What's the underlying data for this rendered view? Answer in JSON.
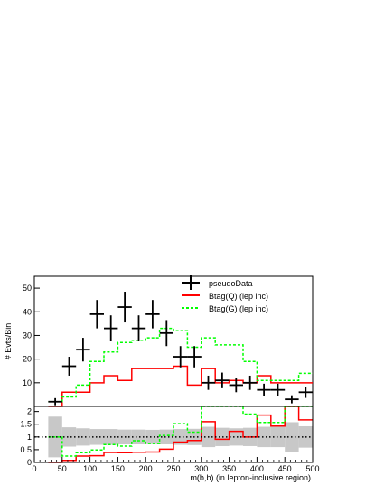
{
  "chart_data": [
    {
      "type": "line",
      "panel": "main",
      "ylabel": "# Evts/Bin",
      "xlim": [
        0,
        500
      ],
      "ylim": [
        0,
        55
      ],
      "yticks": [
        10,
        20,
        30,
        40,
        50
      ],
      "legend_position": "top-right",
      "bin_edges": [
        25,
        50,
        75,
        100,
        125,
        150,
        175,
        200,
        225,
        250,
        275,
        300,
        325,
        350,
        375,
        400,
        425,
        450,
        475,
        500
      ],
      "series": [
        {
          "name": "pseudoData",
          "style": "points",
          "color": "#000000",
          "x": [
            37.5,
            62.5,
            87.5,
            112.5,
            137.5,
            162.5,
            187.5,
            212.5,
            237.5,
            262.5,
            287.5,
            312.5,
            337.5,
            362.5,
            387.5,
            412.5,
            437.5,
            462.5,
            487.5
          ],
          "y": [
            2,
            17,
            24,
            39,
            33,
            42,
            33,
            39,
            31,
            21,
            21,
            10,
            11,
            9,
            10,
            7,
            7,
            3,
            6
          ],
          "yerr": [
            1.5,
            4,
            5,
            6,
            5.5,
            6.5,
            5.5,
            6,
            5.5,
            4.5,
            4.5,
            3,
            3.3,
            3,
            3,
            2.6,
            2.6,
            1.7,
            2.4
          ]
        },
        {
          "name": "Btag(Q) (lep inc)",
          "style": "step",
          "color": "#ff0000",
          "values": [
            0,
            6,
            6,
            10,
            13,
            11,
            16,
            16,
            16,
            17,
            9,
            16,
            10,
            11,
            10,
            13,
            10,
            10,
            10
          ]
        },
        {
          "name": "Btag(G) (lep inc)",
          "style": "step-dashed",
          "color": "#00ff00",
          "values": [
            2,
            4,
            9,
            19,
            23,
            27,
            28,
            29,
            33,
            32,
            25,
            29,
            26,
            26,
            19,
            11,
            11,
            11,
            14
          ]
        }
      ]
    },
    {
      "type": "line",
      "panel": "ratio",
      "xlabel": "m(b,b) (in lepton-inclusive region)",
      "xlim": [
        0,
        500
      ],
      "ylim": [
        0,
        2.2
      ],
      "yticks": [
        0,
        0.5,
        1,
        1.5,
        2
      ],
      "xticks": [
        0,
        50,
        100,
        150,
        200,
        250,
        300,
        350,
        400,
        450,
        500
      ],
      "reference_line": 1,
      "band_color": "#c8c8c8",
      "bin_edges": [
        25,
        50,
        75,
        100,
        125,
        150,
        175,
        200,
        225,
        250,
        275,
        300,
        325,
        350,
        375,
        400,
        425,
        450,
        475,
        500
      ],
      "band": {
        "low": [
          0.2,
          0.62,
          0.66,
          0.69,
          0.69,
          0.71,
          0.71,
          0.72,
          0.71,
          0.69,
          0.68,
          0.6,
          0.64,
          0.66,
          0.64,
          0.6,
          0.6,
          0.42,
          0.58
        ],
        "high": [
          1.8,
          1.38,
          1.34,
          1.31,
          1.31,
          1.29,
          1.29,
          1.28,
          1.29,
          1.31,
          1.32,
          1.4,
          1.36,
          1.34,
          1.36,
          1.4,
          1.4,
          1.58,
          1.42
        ]
      },
      "series": [
        {
          "name": "Btag(Q) (lep inc)",
          "style": "step",
          "color": "#ff0000",
          "values": [
            0,
            0.08,
            0.25,
            0.26,
            0.39,
            0.38,
            0.4,
            0.41,
            0.52,
            0.8,
            0.86,
            1.6,
            0.91,
            1.22,
            1.0,
            1.86,
            1.43,
            3.3,
            1.67
          ]
        },
        {
          "name": "Btag(G) (lep inc)",
          "style": "step-dashed",
          "color": "#00ff00",
          "values": [
            1.0,
            0.25,
            0.38,
            0.49,
            0.7,
            0.64,
            0.85,
            0.74,
            1.06,
            1.52,
            1.19,
            2.9,
            2.36,
            2.89,
            1.9,
            1.57,
            1.57,
            3.67,
            2.33
          ]
        }
      ]
    }
  ]
}
